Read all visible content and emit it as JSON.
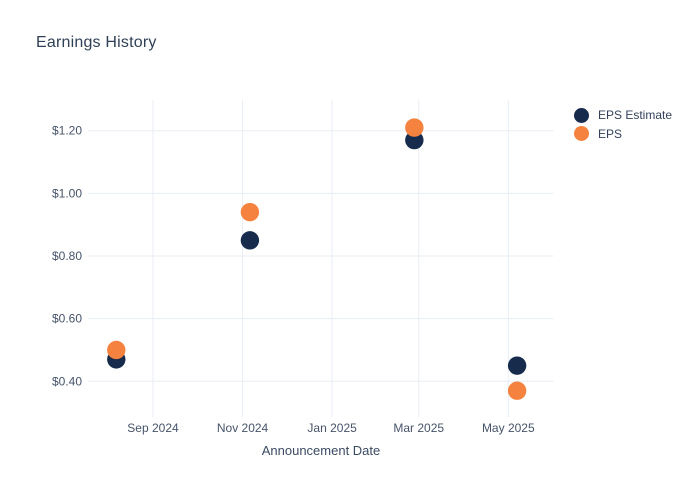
{
  "chart": {
    "title": "Earnings History",
    "x_axis_title": "Announcement Date",
    "colors": {
      "background": "#ffffff",
      "title_text": "#2f4156",
      "axis_title_text": "#3b4a63",
      "tick_label_text": "#46536b",
      "gridline": "#e8eef6",
      "eps_estimate_marker": "#172b4d",
      "eps_marker": "#f5823e"
    }
  },
  "chart_data": {
    "type": "scatter",
    "title": "Earnings History",
    "xlabel": "Announcement Date",
    "ylabel": "",
    "grid": true,
    "legend_position": "right",
    "ylim": [
      0.29,
      1.3
    ],
    "x_ticks": [
      {
        "label": "Sep 2024",
        "date": "2024-09-01"
      },
      {
        "label": "Nov 2024",
        "date": "2024-11-01"
      },
      {
        "label": "Jan 2025",
        "date": "2025-01-01"
      },
      {
        "label": "Mar 2025",
        "date": "2025-03-01"
      },
      {
        "label": "May 2025",
        "date": "2025-05-01"
      }
    ],
    "y_ticks": [
      {
        "label": "$0.40",
        "value": 0.4
      },
      {
        "label": "$0.60",
        "value": 0.6
      },
      {
        "label": "$0.80",
        "value": 0.8
      },
      {
        "label": "$1.00",
        "value": 1.0
      },
      {
        "label": "$1.20",
        "value": 1.2
      }
    ],
    "series": [
      {
        "name": "EPS Estimate",
        "color": "#172b4d",
        "points": [
          {
            "date": "2024-08-07",
            "value": 0.47
          },
          {
            "date": "2024-11-06",
            "value": 0.85
          },
          {
            "date": "2025-02-26",
            "value": 1.17
          },
          {
            "date": "2025-05-07",
            "value": 0.45
          }
        ]
      },
      {
        "name": "EPS",
        "color": "#f5823e",
        "points": [
          {
            "date": "2024-08-07",
            "value": 0.5
          },
          {
            "date": "2024-11-06",
            "value": 0.94
          },
          {
            "date": "2025-02-26",
            "value": 1.21
          },
          {
            "date": "2025-05-07",
            "value": 0.37
          }
        ]
      }
    ]
  }
}
